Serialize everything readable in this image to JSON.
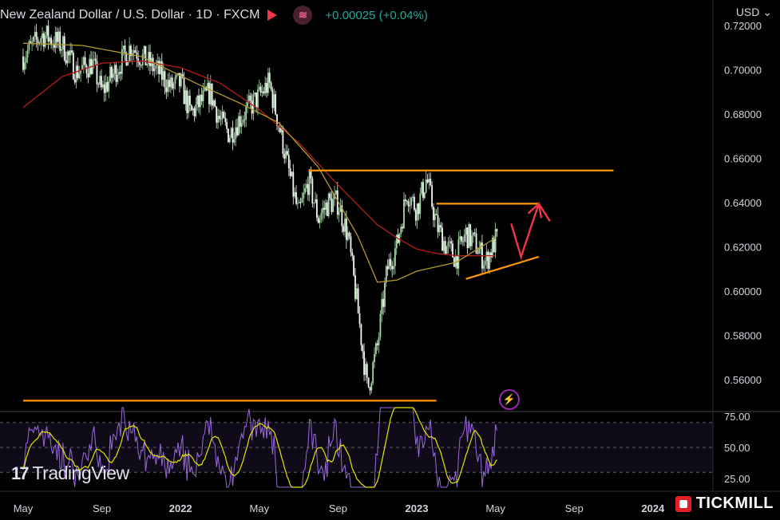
{
  "header": {
    "title": "New Zealand Dollar / U.S. Dollar · 1D · FXCM",
    "change": "+0.00025 (+0.04%)",
    "currency": "USD"
  },
  "branding": {
    "tradingview": "TradingView",
    "broker": "TICKMILL"
  },
  "colors": {
    "background": "#000000",
    "candle_up": "#a5d6a7",
    "candle_down": "#f5f5f5",
    "ma_fast": "#b39b2a",
    "ma_slow": "#b71c1c",
    "trendline": "#ff9800",
    "arrow": "#f23645",
    "rsi": "#9c6ade",
    "rsi_ma": "#e6e600",
    "axis_text": "#d1d4dc"
  },
  "chart_data": {
    "type": "candlestick",
    "symbol": "NZDUSD",
    "interval": "1D",
    "ylim": [
      0.545,
      0.725
    ],
    "y_ticks": [
      "0.72000",
      "0.70000",
      "0.68000",
      "0.66000",
      "0.64000",
      "0.62000",
      "0.60000",
      "0.58000",
      "0.56000"
    ],
    "x_ticks": [
      "May",
      "Sep",
      "2022",
      "May",
      "Sep",
      "2023",
      "May",
      "Sep",
      "2024"
    ],
    "x_tick_months": [
      0,
      4,
      8,
      12,
      16,
      20,
      24,
      28,
      32
    ],
    "price_path": [
      [
        0,
        0.706
      ],
      [
        1,
        0.716
      ],
      [
        2,
        0.711
      ],
      [
        2.7,
        0.699
      ],
      [
        3.5,
        0.703
      ],
      [
        4,
        0.69
      ],
      [
        5,
        0.704
      ],
      [
        5.5,
        0.711
      ],
      [
        6,
        0.706
      ],
      [
        7,
        0.698
      ],
      [
        7.5,
        0.692
      ],
      [
        8,
        0.694
      ],
      [
        8.5,
        0.68
      ],
      [
        9.5,
        0.69
      ],
      [
        10,
        0.677
      ],
      [
        10.5,
        0.671
      ],
      [
        11,
        0.678
      ],
      [
        12,
        0.688
      ],
      [
        12.5,
        0.694
      ],
      [
        13,
        0.675
      ],
      [
        13.5,
        0.654
      ],
      [
        14,
        0.634
      ],
      [
        14.5,
        0.65
      ],
      [
        15,
        0.633
      ],
      [
        15.5,
        0.64
      ],
      [
        16,
        0.64
      ],
      [
        16.5,
        0.625
      ],
      [
        17,
        0.592
      ],
      [
        17.5,
        0.555
      ],
      [
        18,
        0.575
      ],
      [
        18.5,
        0.61
      ],
      [
        19,
        0.621
      ],
      [
        19.5,
        0.645
      ],
      [
        20,
        0.637
      ],
      [
        20.5,
        0.651
      ],
      [
        21,
        0.63
      ],
      [
        21.5,
        0.62
      ],
      [
        22,
        0.615
      ],
      [
        22.5,
        0.626
      ],
      [
        23,
        0.621
      ],
      [
        23.5,
        0.613
      ],
      [
        24,
        0.623
      ]
    ],
    "moving_average_fast": [
      [
        0,
        0.712
      ],
      [
        3,
        0.711
      ],
      [
        6,
        0.706
      ],
      [
        9,
        0.693
      ],
      [
        11,
        0.685
      ],
      [
        13,
        0.676
      ],
      [
        15,
        0.656
      ],
      [
        17,
        0.625
      ],
      [
        18,
        0.604
      ],
      [
        19,
        0.605
      ],
      [
        20,
        0.609
      ],
      [
        22,
        0.613
      ],
      [
        24,
        0.624
      ]
    ],
    "moving_average_slow": [
      [
        0,
        0.683
      ],
      [
        2,
        0.697
      ],
      [
        4,
        0.703
      ],
      [
        6,
        0.704
      ],
      [
        8,
        0.701
      ],
      [
        10,
        0.694
      ],
      [
        12,
        0.682
      ],
      [
        14,
        0.667
      ],
      [
        16,
        0.648
      ],
      [
        18,
        0.63
      ],
      [
        19,
        0.624
      ],
      [
        20,
        0.619
      ],
      [
        21,
        0.617
      ],
      [
        22,
        0.616
      ],
      [
        24,
        0.616
      ]
    ],
    "annotations": {
      "resistance_line": {
        "value": 0.6545,
        "from_month": 14.5,
        "to_month": 30
      },
      "support_line": {
        "value": 0.5505,
        "from_month": 0,
        "to_month": 21
      },
      "range_top_line": {
        "value": 0.6395,
        "from_month": 21,
        "to_month": 26.2
      },
      "ascending_support": {
        "start": [
          22.5,
          0.6055
        ],
        "end": [
          26.2,
          0.6155
        ]
      },
      "arrow_path": [
        [
          24.8,
          0.6305
        ],
        [
          25.3,
          0.6155
        ],
        [
          26.2,
          0.6395
        ]
      ]
    },
    "rsi": {
      "levels": [
        75,
        50,
        25
      ],
      "level_labels": [
        "75.00",
        "50.00",
        "25.00"
      ],
      "range": [
        18,
        82
      ],
      "upper_band": 70,
      "lower_band": 30
    }
  }
}
